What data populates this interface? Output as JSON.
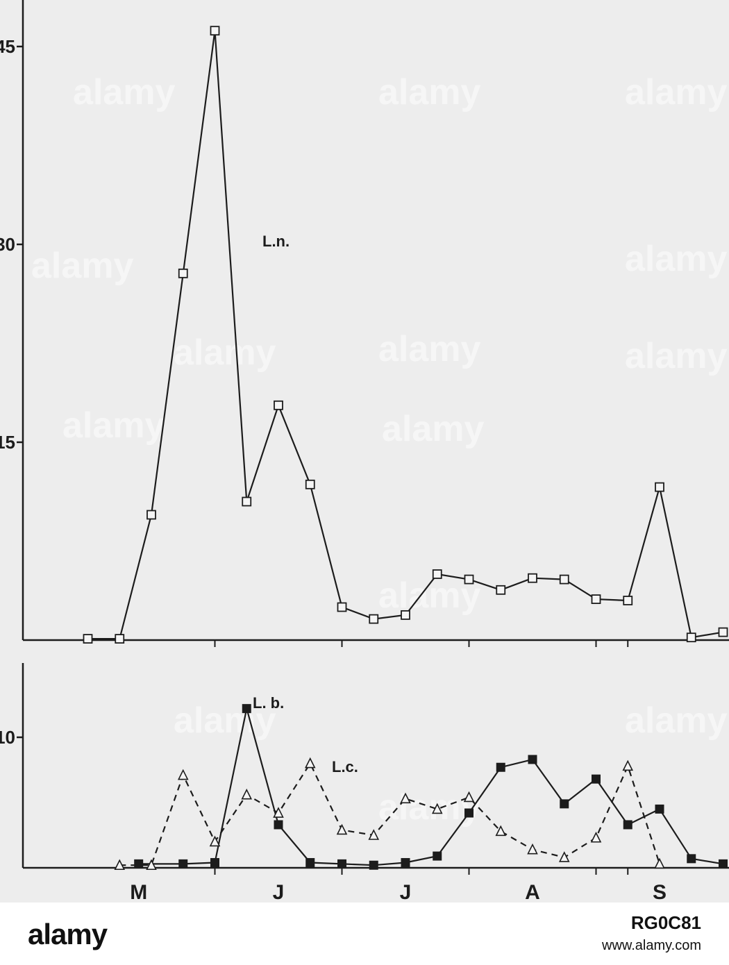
{
  "chart_data": [
    {
      "type": "line",
      "title": "",
      "xlabel": "",
      "ylabel": "",
      "ylim": [
        0,
        46
      ],
      "yticks": [
        {
          "value": 15,
          "label": "15"
        },
        {
          "value": 30,
          "label": "30"
        },
        {
          "value": 45,
          "label": "45"
        }
      ],
      "grid": false,
      "series": [
        {
          "name": "L.n.",
          "marker": "open-square",
          "line": "solid",
          "points": [
            [
              0.5,
              0.1
            ],
            [
              0.75,
              0.1
            ],
            [
              1.0,
              9.5
            ],
            [
              1.25,
              27.8
            ],
            [
              1.5,
              46.2
            ],
            [
              1.75,
              10.5
            ],
            [
              2.0,
              17.8
            ],
            [
              2.25,
              11.8
            ],
            [
              2.5,
              2.5
            ],
            [
              2.75,
              1.6
            ],
            [
              3.0,
              1.9
            ],
            [
              3.25,
              5.0
            ],
            [
              3.5,
              4.6
            ],
            [
              3.75,
              3.8
            ],
            [
              4.0,
              4.7
            ],
            [
              4.25,
              4.6
            ],
            [
              4.5,
              3.1
            ],
            [
              4.75,
              3.0
            ],
            [
              5.0,
              11.6
            ],
            [
              5.25,
              0.2
            ],
            [
              5.5,
              0.6
            ]
          ]
        }
      ]
    },
    {
      "type": "line",
      "title": "",
      "xlabel": "",
      "ylabel": "",
      "ylim": [
        0,
        13
      ],
      "yticks": [
        {
          "value": 10,
          "label": "10"
        }
      ],
      "x_axis": {
        "range": [
          0,
          5.6
        ],
        "ticks": [
          1.5,
          2.5,
          3.5,
          4.5
        ],
        "labels": [
          {
            "x": 0.9,
            "text": "M"
          },
          {
            "x": 2.0,
            "text": "J"
          },
          {
            "x": 3.0,
            "text": "J"
          },
          {
            "x": 4.0,
            "text": "A"
          },
          {
            "x": 5.0,
            "text": "S"
          }
        ]
      },
      "grid": false,
      "series": [
        {
          "name": "L. b.",
          "marker": "filled-square",
          "line": "solid",
          "points": [
            [
              0.9,
              0.3
            ],
            [
              1.25,
              0.3
            ],
            [
              1.5,
              0.4
            ],
            [
              1.75,
              12.2
            ],
            [
              2.0,
              3.3
            ],
            [
              2.25,
              0.4
            ],
            [
              2.5,
              0.3
            ],
            [
              2.75,
              0.2
            ],
            [
              3.0,
              0.4
            ],
            [
              3.25,
              0.9
            ],
            [
              3.5,
              4.2
            ],
            [
              3.75,
              7.7
            ],
            [
              4.0,
              8.3
            ],
            [
              4.25,
              4.9
            ],
            [
              4.5,
              6.8
            ],
            [
              4.75,
              3.3
            ],
            [
              5.0,
              4.5
            ],
            [
              5.25,
              0.7
            ],
            [
              5.5,
              0.3
            ]
          ]
        },
        {
          "name": "L.c.",
          "marker": "open-triangle",
          "line": "dashed",
          "points": [
            [
              0.75,
              0.2
            ],
            [
              1.0,
              0.2
            ],
            [
              1.25,
              7.1
            ],
            [
              1.5,
              2.0
            ],
            [
              1.75,
              5.6
            ],
            [
              2.0,
              4.2
            ],
            [
              2.25,
              8.0
            ],
            [
              2.5,
              2.9
            ],
            [
              2.75,
              2.5
            ],
            [
              3.0,
              5.3
            ],
            [
              3.25,
              4.5
            ],
            [
              3.5,
              5.4
            ],
            [
              3.75,
              2.8
            ],
            [
              4.0,
              1.4
            ],
            [
              4.25,
              0.8
            ],
            [
              4.5,
              2.3
            ],
            [
              4.75,
              7.8
            ],
            [
              5.0,
              0.3
            ]
          ]
        }
      ]
    }
  ],
  "watermark": {
    "text": "alamy"
  },
  "banner": {
    "logo": "alamy",
    "code": "RG0C81",
    "site": "www.alamy.com"
  }
}
